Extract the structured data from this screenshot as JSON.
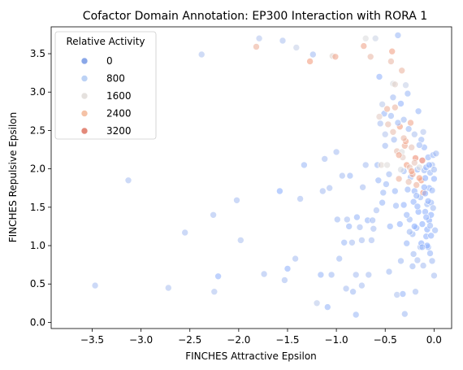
{
  "chart_data": {
    "type": "scatter",
    "title": "Cofactor Domain Annotation: EP300 Interaction with RORA 1",
    "xlabel": "FINCHES Attractive Epsilon",
    "ylabel": "FINCHES Repulsive Epsilon",
    "xlim": [
      -3.92,
      0.18
    ],
    "ylim": [
      -0.08,
      3.85
    ],
    "xticks": [
      -3.5,
      -3.0,
      -2.5,
      -2.0,
      -1.5,
      -1.0,
      -0.5,
      0.0
    ],
    "xtick_labels": [
      "−3.5",
      "−3.0",
      "−2.5",
      "−2.0",
      "−1.5",
      "−1.0",
      "−0.5",
      "0.0"
    ],
    "yticks": [
      0.0,
      0.5,
      1.0,
      1.5,
      2.0,
      2.5,
      3.0,
      3.5
    ],
    "ytick_labels": [
      "0.0",
      "0.5",
      "1.0",
      "1.5",
      "2.0",
      "2.5",
      "3.0",
      "3.5"
    ],
    "grid": false,
    "hue_range": [
      0,
      3600
    ],
    "legend": {
      "title": "Relative Activity",
      "placement": "top-left",
      "entries": [
        {
          "label": "0",
          "value": 0,
          "color": "#8aa7e8"
        },
        {
          "label": "800",
          "value": 800,
          "color": "#bcd2f5"
        },
        {
          "label": "1600",
          "value": 1600,
          "color": "#e5e1de"
        },
        {
          "label": "2400",
          "value": 2400,
          "color": "#f5c2a6"
        },
        {
          "label": "3200",
          "value": 3200,
          "color": "#e3897a"
        }
      ]
    },
    "points": [
      [
        -3.47,
        0.48,
        700
      ],
      [
        -3.13,
        1.85,
        700
      ],
      [
        -2.72,
        0.45,
        800
      ],
      [
        -2.55,
        1.17,
        700
      ],
      [
        -2.38,
        3.49,
        800
      ],
      [
        -2.26,
        1.4,
        700
      ],
      [
        -2.25,
        0.4,
        800
      ],
      [
        -2.21,
        0.6,
        300
      ],
      [
        -2.02,
        1.59,
        700
      ],
      [
        -1.98,
        1.07,
        800
      ],
      [
        -1.82,
        3.59,
        2600
      ],
      [
        -1.79,
        3.7,
        900
      ],
      [
        -1.74,
        0.63,
        700
      ],
      [
        -1.58,
        1.71,
        200
      ],
      [
        -1.55,
        3.67,
        800
      ],
      [
        -1.53,
        0.55,
        700
      ],
      [
        -1.5,
        0.7,
        300
      ],
      [
        -1.42,
        0.83,
        700
      ],
      [
        -1.41,
        3.58,
        1200
      ],
      [
        -1.37,
        1.61,
        700
      ],
      [
        -1.33,
        2.05,
        500
      ],
      [
        -1.27,
        3.4,
        3000
      ],
      [
        -1.24,
        3.49,
        600
      ],
      [
        -1.2,
        0.25,
        1000
      ],
      [
        -1.16,
        0.62,
        400
      ],
      [
        -1.14,
        1.71,
        700
      ],
      [
        -1.12,
        2.13,
        700
      ],
      [
        -1.09,
        0.2,
        400
      ],
      [
        -1.07,
        1.75,
        700
      ],
      [
        -1.05,
        0.62,
        600
      ],
      [
        -1.04,
        3.47,
        1800
      ],
      [
        -1.01,
        3.46,
        2800
      ],
      [
        -1.0,
        2.22,
        700
      ],
      [
        -0.99,
        1.34,
        600
      ],
      [
        -0.97,
        0.83,
        600
      ],
      [
        -0.94,
        1.91,
        700
      ],
      [
        -0.92,
        1.04,
        500
      ],
      [
        -0.9,
        0.44,
        700
      ],
      [
        -0.89,
        1.34,
        700
      ],
      [
        -0.87,
        1.25,
        400
      ],
      [
        -0.86,
        1.91,
        500
      ],
      [
        -0.84,
        1.04,
        700
      ],
      [
        -0.83,
        0.4,
        600
      ],
      [
        -0.8,
        0.1,
        500
      ],
      [
        -0.8,
        0.62,
        700
      ],
      [
        -0.79,
        1.37,
        400
      ],
      [
        -0.76,
        1.24,
        700
      ],
      [
        -0.74,
        1.07,
        700
      ],
      [
        -0.74,
        0.48,
        700
      ],
      [
        -0.73,
        1.76,
        700
      ],
      [
        -0.72,
        3.6,
        2800
      ],
      [
        -0.7,
        3.7,
        1600
      ],
      [
        -0.7,
        2.05,
        700
      ],
      [
        -0.68,
        1.33,
        400
      ],
      [
        -0.67,
        0.62,
        700
      ],
      [
        -0.65,
        3.46,
        2400
      ],
      [
        -0.64,
        1.07,
        700
      ],
      [
        -0.63,
        1.33,
        600
      ],
      [
        -0.62,
        1.22,
        700
      ],
      [
        -0.6,
        3.7,
        1300
      ],
      [
        -0.59,
        1.46,
        700
      ],
      [
        -0.58,
        2.05,
        500
      ],
      [
        -0.57,
        1.85,
        400
      ],
      [
        -0.56,
        3.2,
        300
      ],
      [
        -0.55,
        2.59,
        700
      ],
      [
        -0.54,
        2.05,
        1800
      ],
      [
        -0.53,
        1.56,
        400
      ],
      [
        -0.52,
        1.69,
        500
      ],
      [
        -0.51,
        2.72,
        400
      ],
      [
        -0.5,
        2.45,
        900
      ],
      [
        -0.49,
        1.8,
        500
      ],
      [
        -0.48,
        2.78,
        2600
      ],
      [
        -0.47,
        2.58,
        2300
      ],
      [
        -0.46,
        0.66,
        600
      ],
      [
        -0.45,
        1.25,
        400
      ],
      [
        -0.44,
        3.4,
        2400
      ],
      [
        -0.43,
        3.53,
        2900
      ],
      [
        -0.42,
        2.93,
        600
      ],
      [
        -0.42,
        3.11,
        1500
      ],
      [
        -0.41,
        2.38,
        600
      ],
      [
        -0.4,
        3.1,
        1900
      ],
      [
        -0.39,
        1.52,
        500
      ],
      [
        -0.38,
        2.23,
        2300
      ],
      [
        -0.38,
        0.36,
        800
      ],
      [
        -0.37,
        3.74,
        500
      ],
      [
        -0.36,
        1.87,
        2600
      ],
      [
        -0.35,
        1.28,
        300
      ],
      [
        -0.35,
        2.55,
        3000
      ],
      [
        -0.34,
        0.8,
        600
      ],
      [
        -0.33,
        2.22,
        1600
      ],
      [
        -0.33,
        3.28,
        2500
      ],
      [
        -0.32,
        0.37,
        400
      ],
      [
        -0.32,
        2.15,
        2000
      ],
      [
        -0.31,
        1.97,
        500
      ],
      [
        -0.31,
        1.53,
        300
      ],
      [
        -0.3,
        0.11,
        600
      ],
      [
        -0.3,
        2.3,
        2700
      ],
      [
        -0.29,
        3.09,
        1200
      ],
      [
        -0.28,
        1.03,
        400
      ],
      [
        -0.28,
        2.05,
        3000
      ],
      [
        -0.27,
        1.73,
        400
      ],
      [
        -0.27,
        2.98,
        500
      ],
      [
        -0.26,
        2.52,
        500
      ],
      [
        -0.25,
        2.02,
        2200
      ],
      [
        -0.25,
        1.34,
        500
      ],
      [
        -0.24,
        2.6,
        2800
      ],
      [
        -0.24,
        1.89,
        500
      ],
      [
        -0.23,
        2.28,
        2200
      ],
      [
        -0.22,
        1.93,
        2800
      ],
      [
        -0.22,
        1.15,
        500
      ],
      [
        -0.21,
        0.89,
        600
      ],
      [
        -0.21,
        1.57,
        300
      ],
      [
        -0.2,
        2.45,
        800
      ],
      [
        -0.2,
        1.71,
        300
      ],
      [
        -0.19,
        0.4,
        700
      ],
      [
        -0.19,
        2.14,
        3200
      ],
      [
        -0.18,
        1.23,
        400
      ],
      [
        -0.18,
        1.79,
        2600
      ],
      [
        -0.17,
        1.99,
        400
      ],
      [
        -0.17,
        0.81,
        700
      ],
      [
        -0.16,
        2.75,
        400
      ],
      [
        -0.16,
        1.44,
        200
      ],
      [
        -0.15,
        2.02,
        1600
      ],
      [
        -0.14,
        1.63,
        500
      ],
      [
        -0.14,
        0.98,
        600
      ],
      [
        -0.13,
        2.38,
        500
      ],
      [
        -0.13,
        1.85,
        3100
      ],
      [
        -0.12,
        2.11,
        3400
      ],
      [
        -0.12,
        1.28,
        200
      ],
      [
        -0.11,
        1.69,
        3200
      ],
      [
        -0.11,
        0.74,
        700
      ],
      [
        -0.1,
        1.98,
        500
      ],
      [
        -0.1,
        2.28,
        400
      ],
      [
        -0.09,
        1.44,
        300
      ],
      [
        -0.09,
        1.88,
        200
      ],
      [
        -0.08,
        1.12,
        300
      ],
      [
        -0.08,
        2.02,
        300
      ],
      [
        -0.07,
        1.54,
        500
      ],
      [
        -0.07,
        1.21,
        200
      ],
      [
        -0.06,
        0.98,
        300
      ],
      [
        -0.06,
        2.15,
        400
      ],
      [
        -0.05,
        1.75,
        300
      ],
      [
        -0.05,
        1.33,
        100
      ],
      [
        -0.04,
        0.9,
        400
      ],
      [
        -0.04,
        1.95,
        500
      ],
      [
        -0.03,
        1.56,
        400
      ],
      [
        -0.03,
        1.13,
        300
      ],
      [
        -0.02,
        2.05,
        600
      ],
      [
        -0.02,
        0.8,
        600
      ],
      [
        -0.01,
        1.49,
        600
      ],
      [
        -0.01,
        2.18,
        400
      ],
      [
        0.0,
        0.61,
        700
      ],
      [
        0.0,
        1.99,
        600
      ],
      [
        0.01,
        1.2,
        500
      ],
      [
        0.02,
        2.2,
        600
      ],
      [
        -0.56,
        2.68,
        2000
      ],
      [
        -0.53,
        2.84,
        1000
      ],
      [
        -0.5,
        2.3,
        600
      ],
      [
        -0.44,
        2.69,
        500
      ],
      [
        -0.4,
        2.8,
        2500
      ],
      [
        -0.36,
        2.18,
        2800
      ],
      [
        -0.34,
        1.99,
        1500
      ],
      [
        -0.31,
        2.64,
        600
      ],
      [
        -0.29,
        2.36,
        2900
      ],
      [
        -0.26,
        1.83,
        2300
      ],
      [
        -0.23,
        1.97,
        2900
      ],
      [
        -0.2,
        2.08,
        2200
      ],
      [
        -0.18,
        1.65,
        400
      ],
      [
        -0.15,
        2.31,
        500
      ],
      [
        -0.13,
        1.03,
        200
      ],
      [
        -0.11,
        2.48,
        900
      ],
      [
        -0.09,
        1.68,
        200
      ],
      [
        -0.07,
        1.0,
        200
      ],
      [
        -0.05,
        2.05,
        300
      ],
      [
        -0.03,
        1.4,
        200
      ],
      [
        -0.48,
        2.05,
        1700
      ],
      [
        -0.46,
        1.93,
        600
      ],
      [
        -0.42,
        2.48,
        2300
      ],
      [
        -0.4,
        1.71,
        400
      ],
      [
        -0.37,
        2.6,
        500
      ],
      [
        -0.34,
        2.85,
        300
      ],
      [
        -0.31,
        2.4,
        2400
      ],
      [
        -0.28,
        1.4,
        400
      ],
      [
        -0.25,
        1.18,
        600
      ],
      [
        -0.22,
        0.73,
        600
      ],
      [
        -0.2,
        1.25,
        200
      ],
      [
        -0.17,
        1.51,
        300
      ],
      [
        -0.15,
        1.88,
        3000
      ],
      [
        -0.12,
        0.98,
        400
      ],
      [
        -0.1,
        1.76,
        300
      ],
      [
        -0.08,
        1.37,
        300
      ],
      [
        -0.06,
        1.58,
        300
      ],
      [
        -0.04,
        1.26,
        500
      ],
      [
        -0.02,
        1.72,
        400
      ],
      [
        0.0,
        1.87,
        300
      ]
    ]
  }
}
